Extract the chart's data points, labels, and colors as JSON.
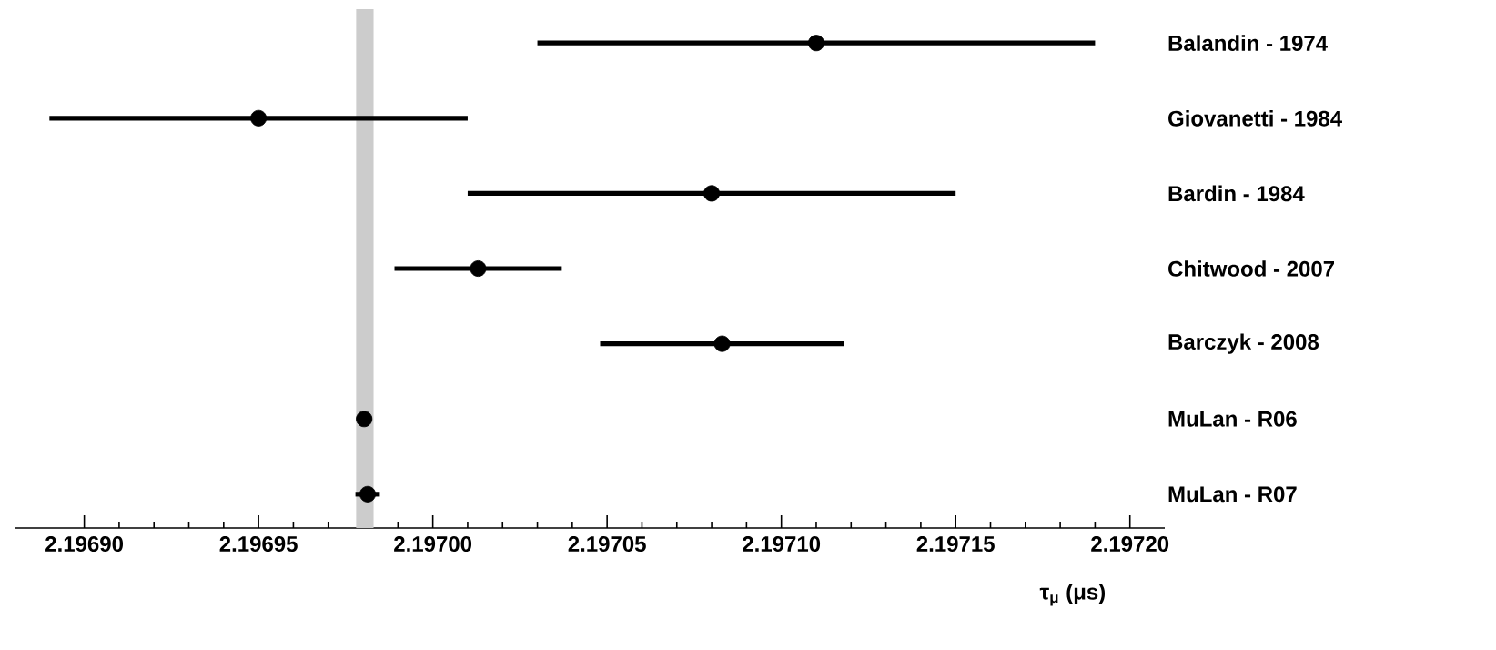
{
  "chart_data": {
    "type": "scatter",
    "orientation": "horizontal",
    "color": "#000000",
    "categories": [
      "Balandin - 1974",
      "Giovanetti - 1984",
      "Bardin - 1984",
      "Chitwood - 2007",
      "Barczyk - 2008",
      "MuLan - R06",
      "MuLan - R07"
    ],
    "values": [
      2.19711,
      2.19695,
      2.19708,
      2.197013,
      2.197083,
      2.1969803,
      2.1969813
    ],
    "errors": [
      8e-05,
      6e-05,
      7e-05,
      2.4e-05,
      3.5e-05,
      2.2e-06,
      3.5e-06
    ],
    "xlabel": "τ$_{μ}$ (μs)",
    "xlim": [
      2.19688,
      2.19721
    ],
    "xticks": [
      {
        "value": 2.1969,
        "label": "2.19690"
      },
      {
        "value": 2.19695,
        "label": "2.19695"
      },
      {
        "value": 2.197,
        "label": "2.19700"
      },
      {
        "value": 2.19705,
        "label": "2.19705"
      },
      {
        "value": 2.1971,
        "label": "2.19710"
      },
      {
        "value": 2.19715,
        "label": "2.19715"
      },
      {
        "value": 2.1972,
        "label": "2.19720"
      }
    ],
    "bands": [
      {
        "axis": "x",
        "from": 2.196978,
        "to": 2.196983,
        "color": "#cccccc"
      }
    ]
  }
}
